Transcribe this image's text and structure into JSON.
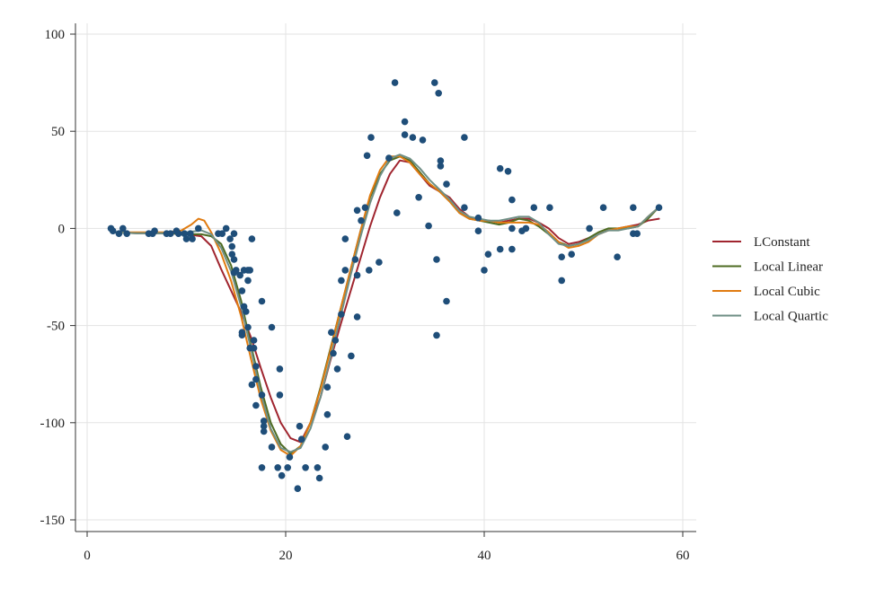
{
  "chart_data": {
    "type": "scatter",
    "title": "",
    "xlabel": "",
    "ylabel": "",
    "xlim": [
      0,
      60
    ],
    "ylim": [
      -150,
      100
    ],
    "x_ticks": [
      "0",
      "20",
      "40",
      "60"
    ],
    "y_ticks": [
      "100",
      "50",
      "0",
      "-50",
      "-100",
      "-150"
    ],
    "x_tick_values": [
      0,
      20,
      40,
      60
    ],
    "y_tick_values": [
      100,
      50,
      0,
      -50,
      -100,
      -150
    ],
    "grid": true,
    "legend_position": "right",
    "point_color": "#1f4e79",
    "points": [
      [
        2.4,
        0
      ],
      [
        2.6,
        -1.3
      ],
      [
        3.2,
        -2.7
      ],
      [
        3.6,
        0
      ],
      [
        4.0,
        -2.7
      ],
      [
        6.2,
        -2.7
      ],
      [
        6.6,
        -2.7
      ],
      [
        6.8,
        -1.3
      ],
      [
        8.0,
        -2.7
      ],
      [
        8.4,
        -2.7
      ],
      [
        9.0,
        -1.3
      ],
      [
        9.2,
        -2.7
      ],
      [
        9.8,
        -2.7
      ],
      [
        10.0,
        -5.4
      ],
      [
        10.4,
        -2.7
      ],
      [
        10.6,
        -5.4
      ],
      [
        11.2,
        0
      ],
      [
        13.2,
        -2.7
      ],
      [
        13.6,
        -2.7
      ],
      [
        14.0,
        0
      ],
      [
        14.4,
        -5.4
      ],
      [
        14.6,
        -9.3
      ],
      [
        14.6,
        -13.3
      ],
      [
        14.8,
        -2.7
      ],
      [
        14.8,
        -16.0
      ],
      [
        14.8,
        -22.8
      ],
      [
        15.0,
        -21.5
      ],
      [
        15.4,
        -24.1
      ],
      [
        15.6,
        -32.1
      ],
      [
        15.6,
        -53.5
      ],
      [
        15.6,
        -54.9
      ],
      [
        15.8,
        -21.5
      ],
      [
        15.8,
        -40.2
      ],
      [
        16.0,
        -42.8
      ],
      [
        16.2,
        -21.5
      ],
      [
        16.2,
        -50.9
      ],
      [
        16.2,
        -26.8
      ],
      [
        16.4,
        -61.6
      ],
      [
        16.4,
        -21.5
      ],
      [
        16.6,
        -5.4
      ],
      [
        16.6,
        -80.4
      ],
      [
        16.8,
        -57.6
      ],
      [
        16.8,
        -61.6
      ],
      [
        17.0,
        -91.1
      ],
      [
        17.0,
        -77.7
      ],
      [
        17.0,
        -71.0
      ],
      [
        17.6,
        -123.1
      ],
      [
        17.6,
        -85.7
      ],
      [
        17.6,
        -37.5
      ],
      [
        17.8,
        -99.1
      ],
      [
        17.8,
        -101.8
      ],
      [
        17.8,
        -104.5
      ],
      [
        18.6,
        -112.5
      ],
      [
        18.6,
        -50.9
      ],
      [
        19.2,
        -123.1
      ],
      [
        19.4,
        -85.7
      ],
      [
        19.4,
        -72.3
      ],
      [
        19.6,
        -127.2
      ],
      [
        20.2,
        -123.1
      ],
      [
        20.4,
        -117.7
      ],
      [
        21.2,
        -133.9
      ],
      [
        21.4,
        -101.8
      ],
      [
        21.6,
        -108.5
      ],
      [
        22.0,
        -123.1
      ],
      [
        23.2,
        -123.1
      ],
      [
        23.4,
        -128.5
      ],
      [
        24.0,
        -112.5
      ],
      [
        24.2,
        -95.8
      ],
      [
        24.2,
        -81.7
      ],
      [
        24.6,
        -53.5
      ],
      [
        24.8,
        -64.3
      ],
      [
        25.0,
        -57.6
      ],
      [
        25.2,
        -72.3
      ],
      [
        25.6,
        -26.8
      ],
      [
        25.6,
        -44.2
      ],
      [
        26.0,
        -5.4
      ],
      [
        26.0,
        -21.5
      ],
      [
        26.2,
        -107.1
      ],
      [
        26.6,
        -65.6
      ],
      [
        27.0,
        -16.0
      ],
      [
        27.2,
        -45.5
      ],
      [
        27.2,
        -24.1
      ],
      [
        27.2,
        9.3
      ],
      [
        27.6,
        4.0
      ],
      [
        28.0,
        10.7
      ],
      [
        28.2,
        37.5
      ],
      [
        28.4,
        -21.5
      ],
      [
        28.6,
        46.8
      ],
      [
        29.4,
        -17.4
      ],
      [
        30.4,
        36.2
      ],
      [
        31.0,
        75.0
      ],
      [
        31.2,
        8.0
      ],
      [
        32.0,
        48.2
      ],
      [
        32.0,
        54.9
      ],
      [
        32.8,
        46.8
      ],
      [
        33.4,
        16.0
      ],
      [
        33.8,
        45.5
      ],
      [
        34.4,
        1.3
      ],
      [
        35.0,
        75.0
      ],
      [
        35.2,
        -16.0
      ],
      [
        35.2,
        -55.0
      ],
      [
        35.4,
        69.6
      ],
      [
        35.6,
        34.8
      ],
      [
        35.6,
        32.1
      ],
      [
        36.2,
        22.8
      ],
      [
        36.2,
        -37.5
      ],
      [
        38.0,
        10.7
      ],
      [
        38.0,
        46.8
      ],
      [
        39.4,
        5.4
      ],
      [
        39.4,
        -1.3
      ],
      [
        40.0,
        -21.5
      ],
      [
        40.4,
        -13.3
      ],
      [
        41.6,
        30.8
      ],
      [
        41.6,
        -10.7
      ],
      [
        42.4,
        29.4
      ],
      [
        42.8,
        14.7
      ],
      [
        42.8,
        -10.7
      ],
      [
        42.8,
        0
      ],
      [
        43.8,
        -1.3
      ],
      [
        44.2,
        0
      ],
      [
        45.0,
        10.7
      ],
      [
        46.6,
        10.7
      ],
      [
        47.8,
        -14.7
      ],
      [
        47.8,
        -26.8
      ],
      [
        48.8,
        -13.3
      ],
      [
        50.6,
        0
      ],
      [
        52.0,
        10.7
      ],
      [
        53.4,
        -14.7
      ],
      [
        55.0,
        10.7
      ],
      [
        55.0,
        -2.7
      ],
      [
        55.4,
        -2.7
      ],
      [
        57.6,
        10.7
      ]
    ],
    "series": [
      {
        "name": "LConstant",
        "color": "#a0252f",
        "x": [
          2.4,
          5,
          8,
          10,
          11.5,
          12.5,
          13.5,
          14.5,
          15.5,
          16.5,
          17.5,
          18.5,
          19.5,
          20.5,
          21.5,
          22.5,
          23.5,
          24.5,
          25.5,
          26.5,
          27.5,
          28.5,
          29.5,
          30.5,
          31.5,
          32.5,
          33.5,
          34.5,
          35.5,
          36.5,
          37.5,
          38.5,
          39.5,
          40.5,
          41.5,
          42.5,
          43.5,
          44.5,
          45.5,
          46.5,
          47.5,
          48.5,
          49.5,
          50.5,
          51.5,
          52.5,
          53.5,
          54.5,
          55.5,
          56.5,
          57.6
        ],
        "y": [
          -2,
          -2.5,
          -2.5,
          -3,
          -4,
          -9,
          -21,
          -32,
          -43,
          -56,
          -72,
          -87,
          -100,
          -108,
          -110,
          -100,
          -87,
          -68,
          -50,
          -33,
          -16,
          1,
          16,
          28,
          35,
          34,
          28,
          22,
          19,
          16,
          10,
          6,
          4,
          4,
          3,
          4,
          5,
          5,
          3,
          0,
          -5,
          -8,
          -7,
          -5,
          -3,
          -1,
          0,
          1,
          2,
          4,
          5
        ]
      },
      {
        "name": "Local Linear",
        "color": "#4e6b22",
        "x": [
          2.4,
          5,
          8,
          10,
          11.5,
          12.5,
          13.5,
          14.5,
          15.5,
          16.5,
          17.5,
          18.5,
          19.5,
          20.5,
          21.5,
          22.5,
          23.5,
          24.5,
          25.5,
          26.5,
          27.5,
          28.5,
          29.5,
          30.5,
          31.5,
          32.5,
          33.5,
          34.5,
          35.5,
          36.5,
          37.5,
          38.5,
          39.5,
          40.5,
          41.5,
          42.5,
          43.5,
          44.5,
          45.5,
          46.5,
          47.5,
          48.5,
          49.5,
          50.5,
          51.5,
          52.5,
          53.5,
          54.5,
          55.5,
          56.5,
          57.6
        ],
        "y": [
          -2,
          -2.5,
          -2.5,
          -3,
          -3,
          -4,
          -8,
          -19,
          -37,
          -60,
          -82,
          -100,
          -111,
          -116,
          -112,
          -100,
          -82,
          -62,
          -42,
          -22,
          -2,
          16,
          28,
          35,
          37,
          35,
          29,
          23,
          19,
          14,
          8,
          5,
          4,
          3,
          2,
          3,
          5,
          4,
          1,
          -3,
          -7,
          -9,
          -8,
          -5,
          -2,
          0,
          0,
          0,
          1,
          5,
          11
        ]
      },
      {
        "name": "Local Cubic",
        "color": "#e07b10",
        "x": [
          2.4,
          5,
          8,
          9.5,
          10.5,
          11.2,
          11.8,
          12.5,
          13.5,
          14.5,
          15.5,
          16.5,
          17.5,
          18.5,
          19.5,
          20.5,
          21.5,
          22.5,
          23.5,
          24.5,
          25.5,
          26.5,
          27.5,
          28.5,
          29.5,
          30.5,
          31.5,
          32.5,
          33.5,
          34.5,
          35.5,
          36.5,
          37.5,
          38.5,
          39.5,
          40.5,
          41.5,
          42.5,
          43.5,
          44.5,
          45.5,
          46.5,
          47.5,
          48.5,
          49.5,
          50.5,
          51.5,
          52.5,
          53.5,
          54.5,
          55.5,
          56.5,
          57.6
        ],
        "y": [
          -2,
          -2,
          -2,
          -1,
          2,
          5,
          4,
          -2,
          -13,
          -27,
          -45,
          -67,
          -88,
          -104,
          -114,
          -117,
          -112,
          -100,
          -83,
          -63,
          -42,
          -22,
          -2,
          17,
          30,
          37,
          37,
          34,
          28,
          23,
          19,
          14,
          8,
          5,
          4,
          4,
          3,
          3,
          3,
          3,
          2,
          -2,
          -7,
          -10,
          -9,
          -7,
          -3,
          -1,
          0,
          1,
          1,
          6,
          11
        ]
      },
      {
        "name": "Local Quartic",
        "color": "#6f8f85",
        "x": [
          2.4,
          5,
          8,
          10,
          11.5,
          12.5,
          13.5,
          14.5,
          15.5,
          16.5,
          17.5,
          18.5,
          19.5,
          20.5,
          21.5,
          22.5,
          23.5,
          24.5,
          25.5,
          26.5,
          27.5,
          28.5,
          29.5,
          30.5,
          31.5,
          32.5,
          33.5,
          34.5,
          35.5,
          36.5,
          37.5,
          38.5,
          39.5,
          40.5,
          41.5,
          42.5,
          43.5,
          44.5,
          45.5,
          46.5,
          47.5,
          48.5,
          49.5,
          50.5,
          51.5,
          52.5,
          53.5,
          54.5,
          55.5,
          56.5,
          57.6
        ],
        "y": [
          -2,
          -2.5,
          -2.5,
          -2,
          -1,
          -3,
          -10,
          -22,
          -40,
          -62,
          -85,
          -103,
          -113,
          -115,
          -113,
          -103,
          -87,
          -67,
          -46,
          -25,
          -5,
          13,
          27,
          36,
          38,
          36,
          31,
          25,
          20,
          15,
          9,
          6,
          5,
          4,
          4,
          5,
          6,
          6,
          3,
          -3,
          -8,
          -9,
          -8,
          -6,
          -3,
          -1,
          -1,
          0,
          1,
          6,
          11
        ]
      }
    ]
  }
}
